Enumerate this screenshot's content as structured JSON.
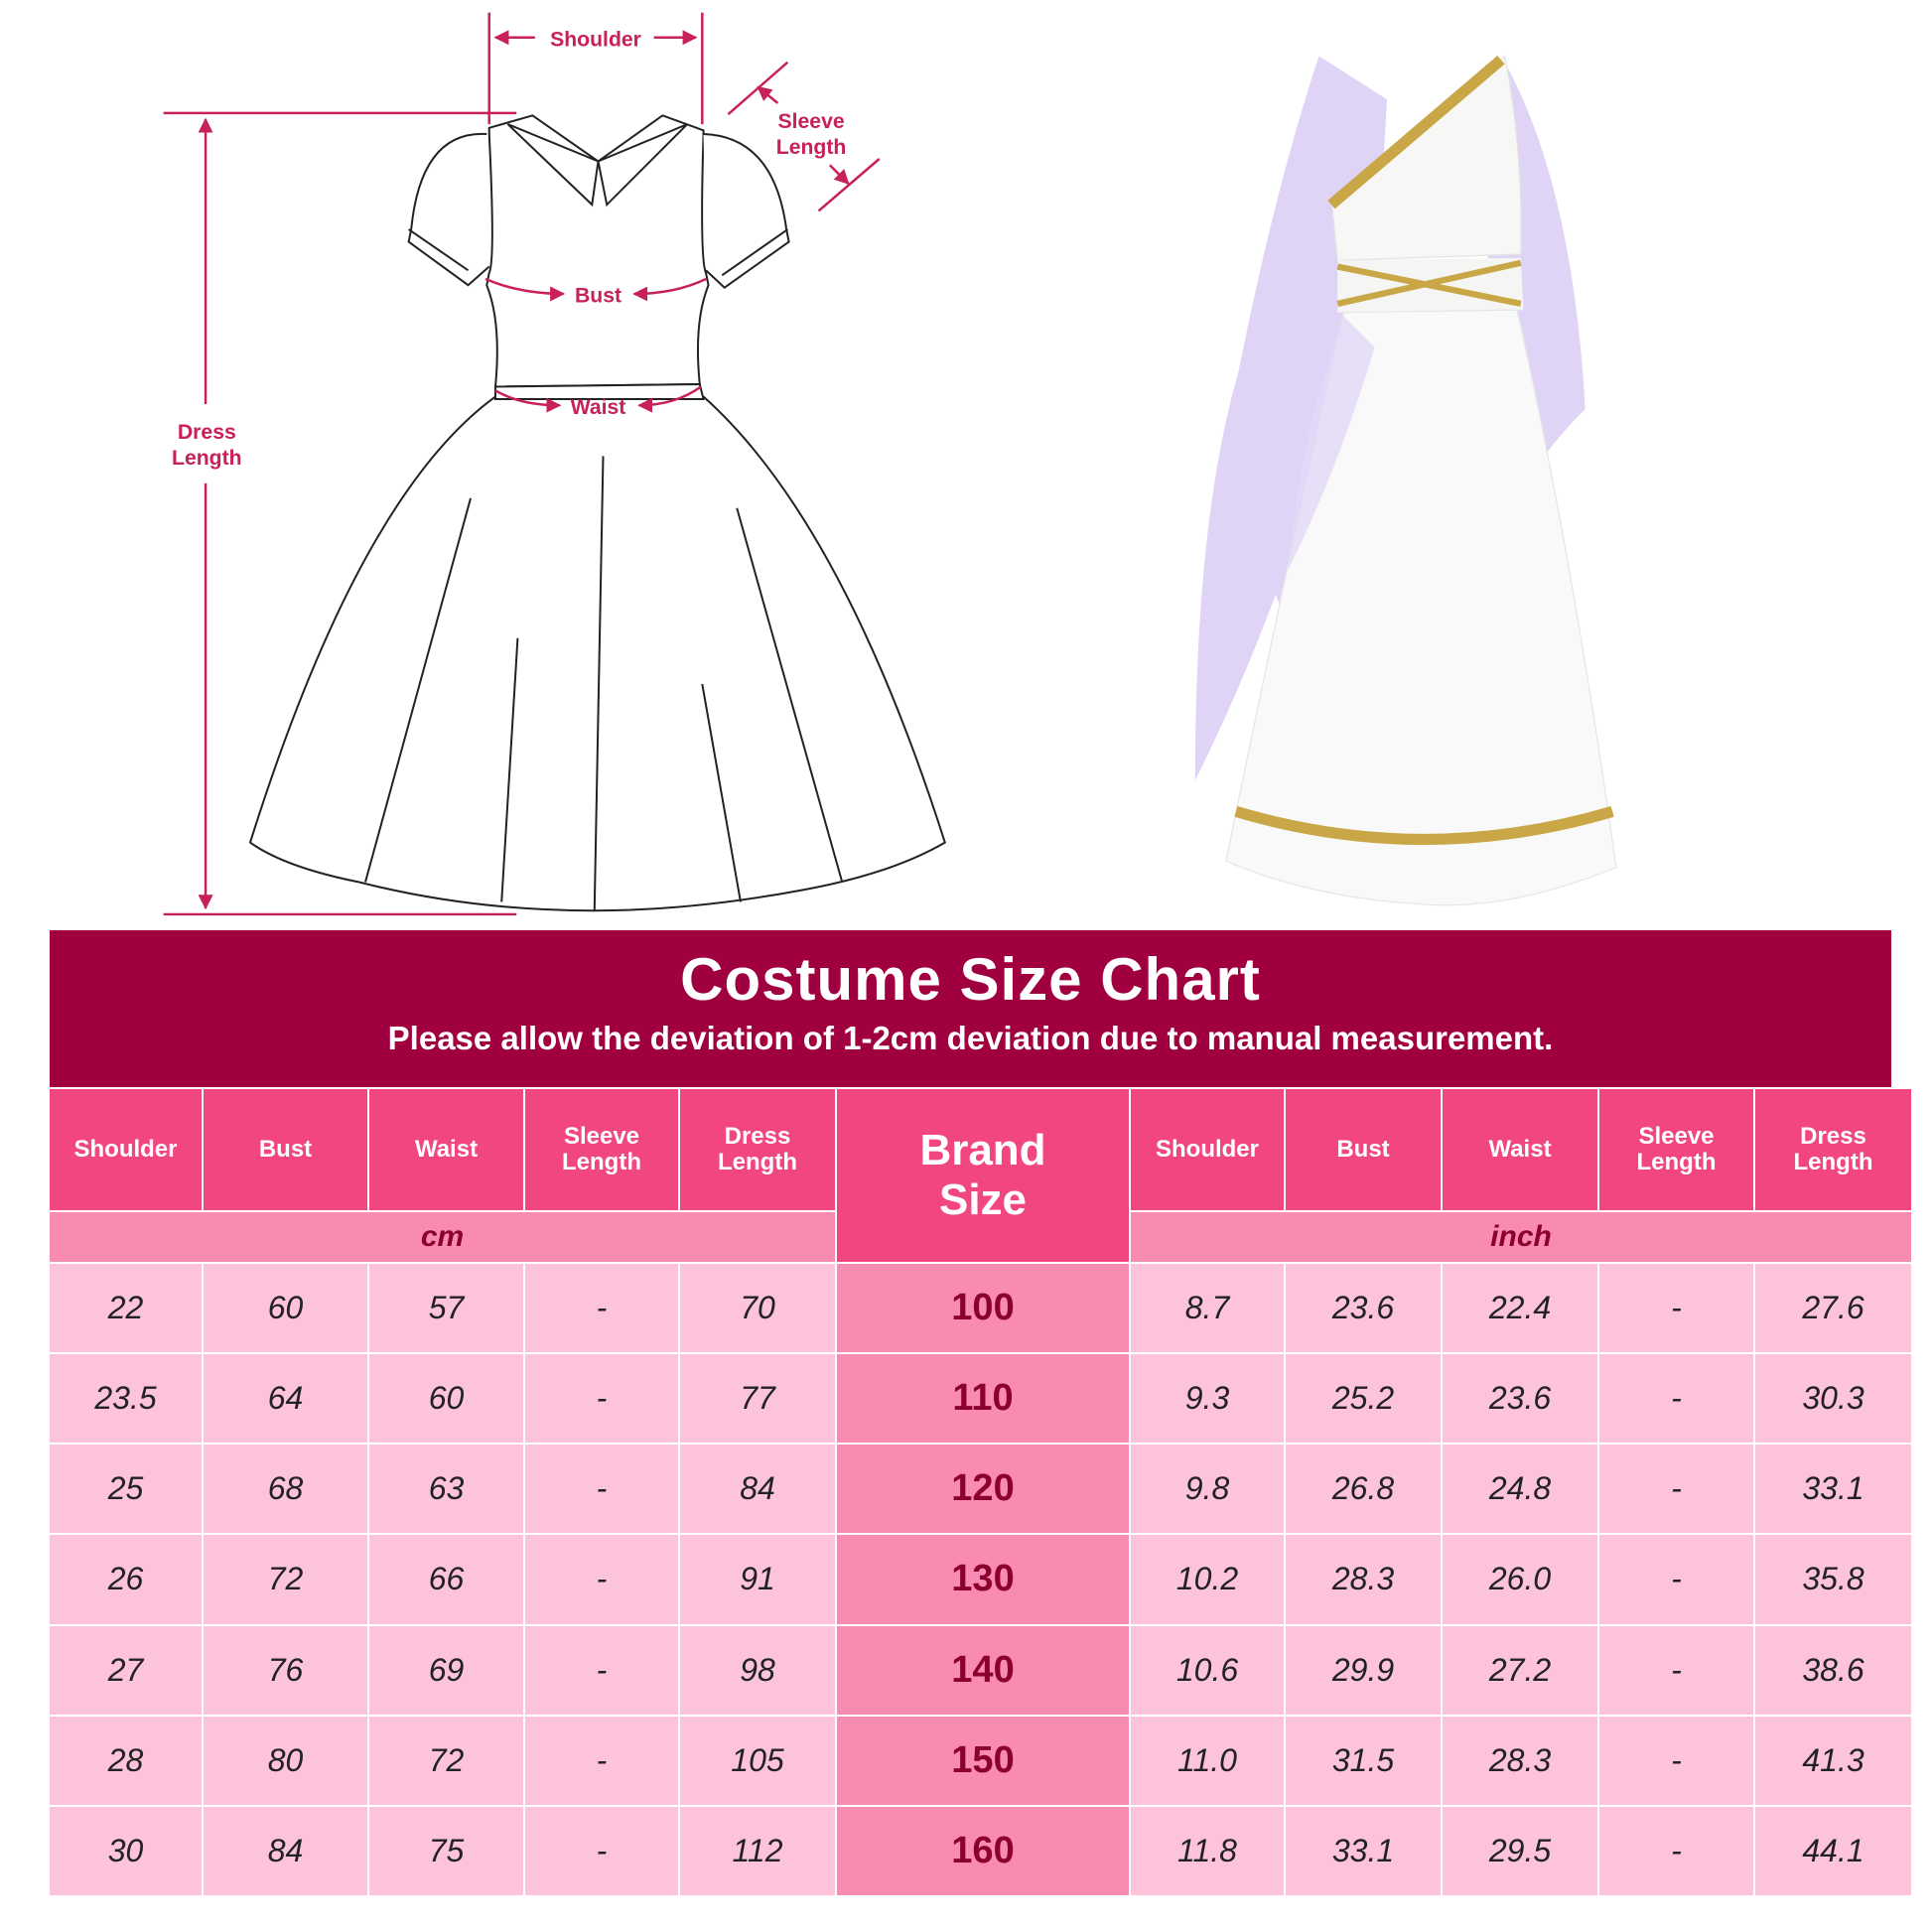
{
  "diagram": {
    "labels": {
      "shoulder": "Shoulder",
      "sleeve_length": [
        "Sleeve",
        "Length"
      ],
      "bust": "Bust",
      "waist": "Waist",
      "dress_length": [
        "Dress",
        "Length"
      ]
    },
    "annotation_color": "#C8205A"
  },
  "banner": {
    "title": "Costume Size Chart",
    "subtitle": "Please allow the deviation of 1-2cm deviation due to manual measurement."
  },
  "table": {
    "left_headers": [
      "Shoulder",
      "Bust",
      "Waist",
      "Sleeve\nLength",
      "Dress\nLength"
    ],
    "brand_header": "Brand\nSize",
    "right_headers": [
      "Shoulder",
      "Bust",
      "Waist",
      "Sleeve\nLength",
      "Dress\nLength"
    ],
    "left_unit": "cm",
    "right_unit": "inch",
    "rows": [
      {
        "cm": [
          "22",
          "60",
          "57",
          "-",
          "70"
        ],
        "size": "100",
        "inch": [
          "8.7",
          "23.6",
          "22.4",
          "-",
          "27.6"
        ]
      },
      {
        "cm": [
          "23.5",
          "64",
          "60",
          "-",
          "77"
        ],
        "size": "110",
        "inch": [
          "9.3",
          "25.2",
          "23.6",
          "-",
          "30.3"
        ]
      },
      {
        "cm": [
          "25",
          "68",
          "63",
          "-",
          "84"
        ],
        "size": "120",
        "inch": [
          "9.8",
          "26.8",
          "24.8",
          "-",
          "33.1"
        ]
      },
      {
        "cm": [
          "26",
          "72",
          "66",
          "-",
          "91"
        ],
        "size": "130",
        "inch": [
          "10.2",
          "28.3",
          "26.0",
          "-",
          "35.8"
        ]
      },
      {
        "cm": [
          "27",
          "76",
          "69",
          "-",
          "98"
        ],
        "size": "140",
        "inch": [
          "10.6",
          "29.9",
          "27.2",
          "-",
          "38.6"
        ]
      },
      {
        "cm": [
          "28",
          "80",
          "72",
          "-",
          "105"
        ],
        "size": "150",
        "inch": [
          "11.0",
          "31.5",
          "28.3",
          "-",
          "41.3"
        ]
      },
      {
        "cm": [
          "30",
          "84",
          "75",
          "-",
          "112"
        ],
        "size": "160",
        "inch": [
          "11.8",
          "33.1",
          "29.5",
          "-",
          "44.1"
        ]
      }
    ],
    "colors": {
      "banner": "#A0003F",
      "header": "#F24683",
      "unit_row": "#F98BB3",
      "cell": "#FCC3DA",
      "brand_text": "#8B0030"
    }
  }
}
